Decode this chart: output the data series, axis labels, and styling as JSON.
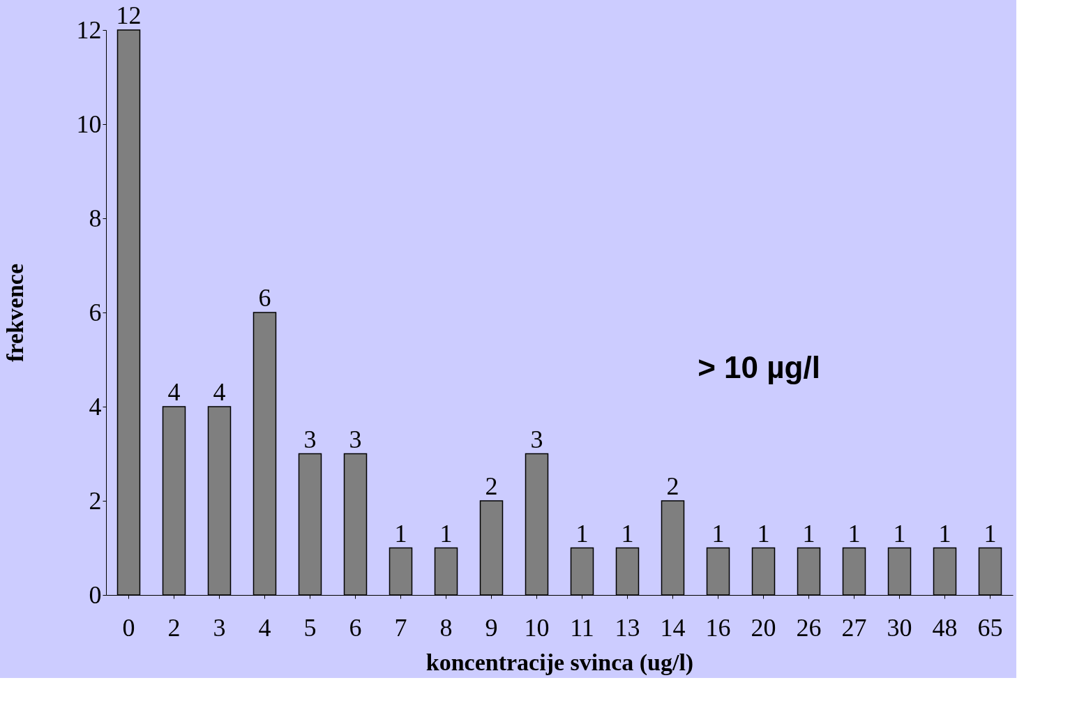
{
  "chart_data": {
    "type": "bar",
    "xlabel": "koncentracije svinca (ug/l)",
    "ylabel": "frekvence",
    "categories": [
      "0",
      "2",
      "3",
      "4",
      "5",
      "6",
      "7",
      "8",
      "9",
      "10",
      "11",
      "13",
      "14",
      "16",
      "20",
      "26",
      "27",
      "30",
      "48",
      "65"
    ],
    "values": [
      12,
      4,
      4,
      6,
      3,
      3,
      1,
      1,
      2,
      3,
      1,
      1,
      2,
      1,
      1,
      1,
      1,
      1,
      1,
      1
    ],
    "color": "#7f7f7f",
    "ylim": [
      0,
      12
    ],
    "yticks": [
      0,
      2,
      4,
      6,
      8,
      10,
      12
    ],
    "grid": false,
    "data_labels": true,
    "annotations": [
      "> 10 µg/l"
    ]
  }
}
